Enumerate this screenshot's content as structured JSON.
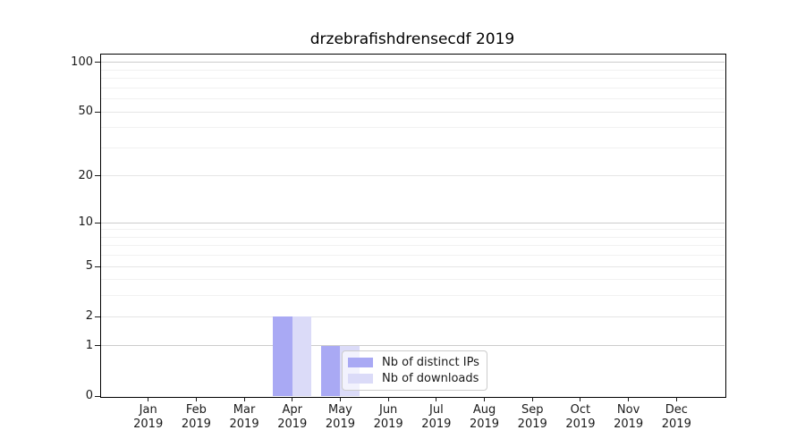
{
  "title": "drzebrafishdrensecdf 2019",
  "colors": {
    "background": "#ffffff",
    "axis": "#000000",
    "tick_text": "#1a1a1a",
    "grid_major": "#cccccc",
    "grid_mid": "#e5e5e5",
    "grid_minor": "#f1f1f1",
    "series_ips": "#a9a9f4",
    "series_downloads": "#dbdbf8",
    "legend_border": "#cccccc"
  },
  "chart_data": {
    "type": "bar",
    "title": "drzebrafishdrensecdf 2019",
    "xlabel": "",
    "ylabel": "",
    "year": "2019",
    "categories": [
      "Jan",
      "Feb",
      "Mar",
      "Apr",
      "May",
      "Jun",
      "Jul",
      "Aug",
      "Sep",
      "Oct",
      "Nov",
      "Dec"
    ],
    "series": [
      {
        "name": "Nb of distinct IPs",
        "color": "#a9a9f4",
        "values": [
          0,
          0,
          0,
          2,
          1,
          0,
          0,
          0,
          0,
          0,
          0,
          0
        ]
      },
      {
        "name": "Nb of downloads",
        "color": "#dbdbf8",
        "values": [
          0,
          0,
          0,
          2,
          1,
          0,
          0,
          0,
          0,
          0,
          0,
          0
        ]
      }
    ],
    "yscale": "log1p",
    "ylim": [
      0,
      113
    ],
    "yticks": [
      0,
      1,
      2,
      5,
      10,
      20,
      50,
      100
    ],
    "gridlines_major": [
      1,
      10,
      100
    ],
    "gridlines_mid": [
      2,
      5,
      20,
      50
    ],
    "gridlines_minor": [
      3,
      4,
      6,
      7,
      8,
      9,
      30,
      40,
      60,
      70,
      80,
      90
    ],
    "grid": true,
    "legend_position": "lower right inside plot"
  }
}
